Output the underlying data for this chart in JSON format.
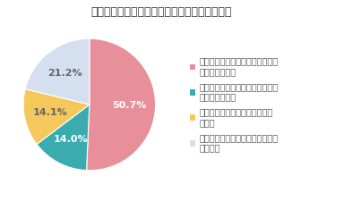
{
  "title": "》新型コロナを経た昇進・昇給への意識変化》",
  "title_display": "【新型コロナを経た昇進・昇給への意識変化】",
  "slices": [
    50.7,
    14.0,
    14.1,
    21.2
  ],
  "colors": [
    "#e8909a",
    "#3aacb0",
    "#f5c85c",
    "#d4dff0"
  ],
  "labels": [
    "50.7%",
    "14.0%",
    "14.1%",
    "21.2%"
  ],
  "label_colors": [
    "#ffffff",
    "#ffffff",
    "#666666",
    "#666666"
  ],
  "legend_labels_line1": [
    "昇進・昇給への意欲が高まった／",
    "昇進・昇給への意欲が下がった／",
    "昇進・昇給への意欲に変化はな",
    "そもそも昇進・昇給を意識してい"
  ],
  "legend_labels_line2": [
    "今後高まりそう",
    "今後下がりそう",
    "かった",
    "なかった"
  ],
  "startangle": 90,
  "background_color": "#ffffff",
  "title_fontsize": 9,
  "label_fontsize": 8,
  "legend_fontsize": 7
}
